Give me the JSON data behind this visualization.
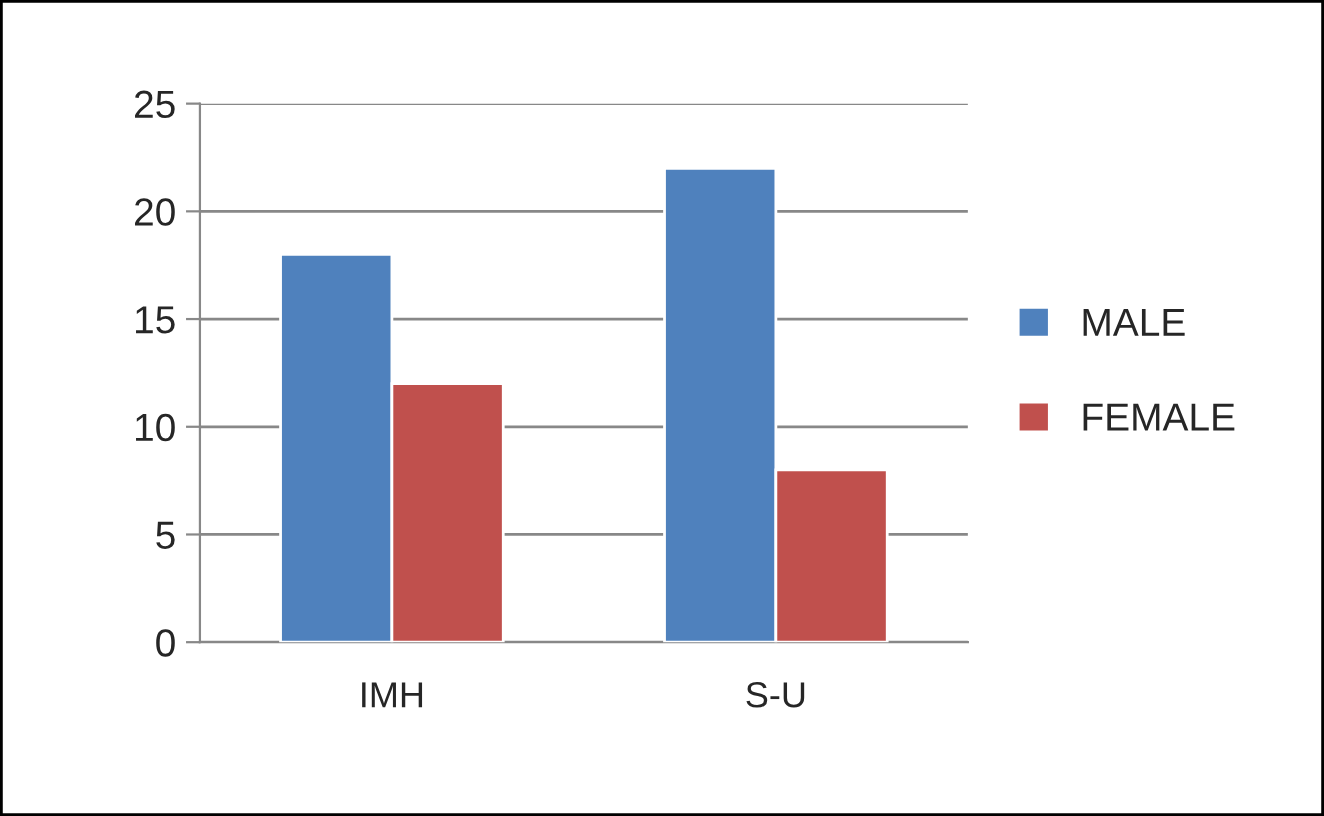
{
  "chart_data": {
    "type": "bar",
    "categories": [
      "IMH",
      "S-U"
    ],
    "series": [
      {
        "name": "MALE",
        "color": "#4f81bd",
        "values": [
          18,
          22
        ]
      },
      {
        "name": "FEMALE",
        "color": "#c0504d",
        "values": [
          12,
          8
        ]
      }
    ],
    "ylim": [
      0,
      25
    ],
    "yticks": [
      0,
      5,
      10,
      15,
      20,
      25
    ],
    "grid": "y",
    "legend": "right"
  }
}
